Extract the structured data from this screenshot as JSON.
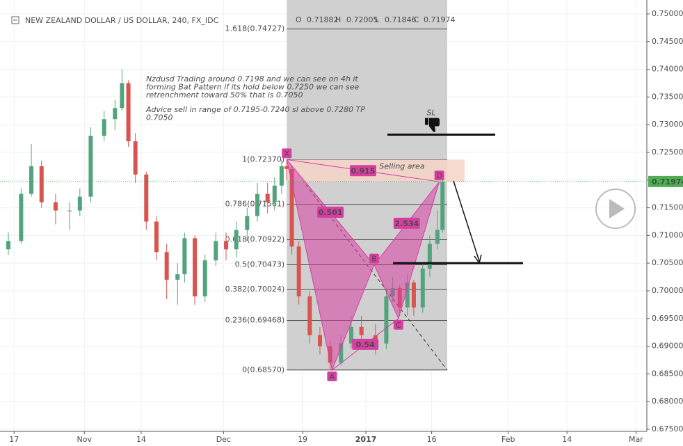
{
  "chart_data": {
    "type": "candlestick",
    "title": "NEW ZEALAND DOLLAR / US DOLLAR, 240, FX_IDC",
    "ohlc_header": {
      "o_label": "O",
      "o": 0.71882,
      "h_label": "H",
      "h": 0.72005,
      "l_label": "L",
      "l": 0.71846,
      "c_label": "C",
      "c": 0.71974
    },
    "up_color": "#53a37d",
    "down_color": "#d9534f",
    "xlim": [
      0,
      100
    ],
    "ylim": [
      0.675,
      0.75
    ],
    "xticks": [
      {
        "value": 0.9,
        "label": "17"
      },
      {
        "value": 11.9,
        "label": "Nov"
      },
      {
        "value": 20.8,
        "label": "14"
      },
      {
        "value": 33.7,
        "label": "Dec"
      },
      {
        "value": 46.1,
        "label": "19"
      },
      {
        "value": 56.0,
        "label": "2017"
      },
      {
        "value": 66.3,
        "label": "16"
      },
      {
        "value": 78.3,
        "label": "Feb"
      },
      {
        "value": 87.5,
        "label": "14"
      },
      {
        "value": 98.3,
        "label": "Mar"
      }
    ],
    "yticks": [
      {
        "value": 0.75,
        "label": "0.75000"
      },
      {
        "value": 0.745,
        "label": "0.74500"
      },
      {
        "value": 0.74,
        "label": "0.74000"
      },
      {
        "value": 0.735,
        "label": "0.73500"
      },
      {
        "value": 0.73,
        "label": "0.73000"
      },
      {
        "value": 0.725,
        "label": "0.72500"
      },
      {
        "value": 0.72,
        "label": "0.72000"
      },
      {
        "value": 0.715,
        "label": "0.71500"
      },
      {
        "value": 0.71,
        "label": "0.71000"
      },
      {
        "value": 0.705,
        "label": "0.70500"
      },
      {
        "value": 0.7,
        "label": "0.70000"
      },
      {
        "value": 0.695,
        "label": "0.69500"
      },
      {
        "value": 0.69,
        "label": "0.69000"
      },
      {
        "value": 0.685,
        "label": "0.68500"
      },
      {
        "value": 0.68,
        "label": "0.68000"
      },
      {
        "value": 0.675,
        "label": "0.67500"
      }
    ],
    "grid": true,
    "last_price": {
      "value": 0.71974,
      "label": "0.71974",
      "color": "#4caf50"
    },
    "candles": [
      {
        "x": 0.0,
        "o": 0.7075,
        "h": 0.7105,
        "l": 0.7065,
        "c": 0.709
      },
      {
        "x": 2.0,
        "o": 0.709,
        "h": 0.7185,
        "l": 0.7085,
        "c": 0.7175
      },
      {
        "x": 3.6,
        "o": 0.7175,
        "h": 0.7265,
        "l": 0.717,
        "c": 0.7225
      },
      {
        "x": 5.2,
        "o": 0.7225,
        "h": 0.7235,
        "l": 0.715,
        "c": 0.716
      },
      {
        "x": 7.4,
        "o": 0.716,
        "h": 0.7175,
        "l": 0.712,
        "c": 0.7145
      },
      {
        "x": 9.6,
        "o": 0.7145,
        "h": 0.716,
        "l": 0.711,
        "c": 0.7145
      },
      {
        "x": 11.2,
        "o": 0.7145,
        "h": 0.7185,
        "l": 0.7135,
        "c": 0.717
      },
      {
        "x": 12.9,
        "o": 0.717,
        "h": 0.7295,
        "l": 0.716,
        "c": 0.728
      },
      {
        "x": 15.0,
        "o": 0.728,
        "h": 0.7325,
        "l": 0.727,
        "c": 0.731
      },
      {
        "x": 16.7,
        "o": 0.731,
        "h": 0.7345,
        "l": 0.729,
        "c": 0.733
      },
      {
        "x": 17.8,
        "o": 0.733,
        "h": 0.74,
        "l": 0.7325,
        "c": 0.7375
      },
      {
        "x": 18.8,
        "o": 0.7375,
        "h": 0.738,
        "l": 0.726,
        "c": 0.727
      },
      {
        "x": 19.9,
        "o": 0.727,
        "h": 0.7285,
        "l": 0.7195,
        "c": 0.721
      },
      {
        "x": 21.6,
        "o": 0.721,
        "h": 0.7215,
        "l": 0.711,
        "c": 0.7125
      },
      {
        "x": 23.2,
        "o": 0.7125,
        "h": 0.7135,
        "l": 0.7055,
        "c": 0.707
      },
      {
        "x": 24.8,
        "o": 0.707,
        "h": 0.7085,
        "l": 0.6985,
        "c": 0.702
      },
      {
        "x": 26.5,
        "o": 0.702,
        "h": 0.705,
        "l": 0.6975,
        "c": 0.703
      },
      {
        "x": 27.6,
        "o": 0.703,
        "h": 0.7105,
        "l": 0.7015,
        "c": 0.7095
      },
      {
        "x": 29.2,
        "o": 0.7095,
        "h": 0.71,
        "l": 0.6975,
        "c": 0.699
      },
      {
        "x": 30.8,
        "o": 0.699,
        "h": 0.7065,
        "l": 0.698,
        "c": 0.7055
      },
      {
        "x": 32.5,
        "o": 0.7055,
        "h": 0.7105,
        "l": 0.7045,
        "c": 0.709
      },
      {
        "x": 34.1,
        "o": 0.709,
        "h": 0.7105,
        "l": 0.7055,
        "c": 0.7075
      },
      {
        "x": 35.7,
        "o": 0.7075,
        "h": 0.7125,
        "l": 0.706,
        "c": 0.711
      },
      {
        "x": 37.4,
        "o": 0.711,
        "h": 0.715,
        "l": 0.709,
        "c": 0.7135
      },
      {
        "x": 39.0,
        "o": 0.7135,
        "h": 0.7195,
        "l": 0.7125,
        "c": 0.7175
      },
      {
        "x": 40.6,
        "o": 0.7175,
        "h": 0.7195,
        "l": 0.714,
        "c": 0.716
      },
      {
        "x": 41.7,
        "o": 0.716,
        "h": 0.7205,
        "l": 0.7145,
        "c": 0.719
      },
      {
        "x": 42.8,
        "o": 0.719,
        "h": 0.7237,
        "l": 0.7175,
        "c": 0.7225
      },
      {
        "x": 43.6,
        "o": 0.7225,
        "h": 0.7237,
        "l": 0.72,
        "c": 0.722
      },
      {
        "x": 44.4,
        "o": 0.722,
        "h": 0.7225,
        "l": 0.7065,
        "c": 0.708
      },
      {
        "x": 45.5,
        "o": 0.708,
        "h": 0.709,
        "l": 0.6975,
        "c": 0.699
      },
      {
        "x": 47.2,
        "o": 0.699,
        "h": 0.7,
        "l": 0.6905,
        "c": 0.692
      },
      {
        "x": 48.8,
        "o": 0.692,
        "h": 0.6935,
        "l": 0.6885,
        "c": 0.69
      },
      {
        "x": 50.4,
        "o": 0.69,
        "h": 0.691,
        "l": 0.6857,
        "c": 0.687
      },
      {
        "x": 52.1,
        "o": 0.687,
        "h": 0.692,
        "l": 0.6865,
        "c": 0.6905
      },
      {
        "x": 53.7,
        "o": 0.6905,
        "h": 0.6955,
        "l": 0.6895,
        "c": 0.6935
      },
      {
        "x": 55.3,
        "o": 0.6935,
        "h": 0.6955,
        "l": 0.6905,
        "c": 0.692
      },
      {
        "x": 57.5,
        "o": 0.692,
        "h": 0.694,
        "l": 0.6885,
        "c": 0.6905
      },
      {
        "x": 59.2,
        "o": 0.6905,
        "h": 0.7005,
        "l": 0.6895,
        "c": 0.699
      },
      {
        "x": 60.2,
        "o": 0.699,
        "h": 0.7025,
        "l": 0.698,
        "c": 0.7005
      },
      {
        "x": 61.3,
        "o": 0.7005,
        "h": 0.701,
        "l": 0.6955,
        "c": 0.697
      },
      {
        "x": 62.5,
        "o": 0.697,
        "h": 0.703,
        "l": 0.6955,
        "c": 0.7015
      },
      {
        "x": 63.5,
        "o": 0.7015,
        "h": 0.702,
        "l": 0.6955,
        "c": 0.697
      },
      {
        "x": 64.9,
        "o": 0.697,
        "h": 0.705,
        "l": 0.696,
        "c": 0.704
      },
      {
        "x": 66.0,
        "o": 0.704,
        "h": 0.71,
        "l": 0.7025,
        "c": 0.7085
      },
      {
        "x": 67.2,
        "o": 0.7085,
        "h": 0.7145,
        "l": 0.7075,
        "c": 0.711
      },
      {
        "x": 68.0,
        "o": 0.711,
        "h": 0.7201,
        "l": 0.7105,
        "c": 0.7197
      }
    ],
    "fib_levels": [
      {
        "value": 0.74727,
        "label": "1.618(0.74727)"
      },
      {
        "value": 0.7237,
        "label": "1(0.72370)"
      },
      {
        "value": 0.71561,
        "label": "0.786(0.71561)"
      },
      {
        "value": 0.70922,
        "label": "0.618(0.70922)"
      },
      {
        "value": 0.70473,
        "label": "0.5(0.70473)"
      },
      {
        "value": 0.70024,
        "label": "0.382(0.70024)"
      },
      {
        "value": 0.69468,
        "label": "0.236(0.69468)"
      },
      {
        "value": 0.6857,
        "label": "0(0.68570)"
      }
    ],
    "pattern": {
      "color": "#d63fa0",
      "points": [
        {
          "label": "X",
          "x": 43.6,
          "y": 0.7237
        },
        {
          "label": "A",
          "x": 50.7,
          "y": 0.6857
        },
        {
          "label": "B",
          "x": 57.3,
          "y": 0.7047
        },
        {
          "label": "C",
          "x": 61.1,
          "y": 0.695
        },
        {
          "label": "D",
          "x": 67.5,
          "y": 0.7197
        }
      ],
      "ratios": [
        0.501,
        0.54,
        2.534,
        0.915
      ]
    },
    "selling_area": {
      "label": "Selling area",
      "y_top": 0.7237,
      "y_bottom": 0.7197
    },
    "stop_loss": {
      "label": "SL",
      "value": 0.7282
    },
    "target": {
      "value": 0.705
    },
    "notes": [
      [
        "Nzdusd Trading around 0.7198 and we can see on 4h it",
        "forming Bat Pattern if its hold below 0.7250 we can see",
        "retrenchment toward 50% that is 0.7050"
      ],
      [
        "Advice sell in range of 0.7195-0.7240 sl above 0.7280 TP",
        "0.7050"
      ]
    ]
  }
}
